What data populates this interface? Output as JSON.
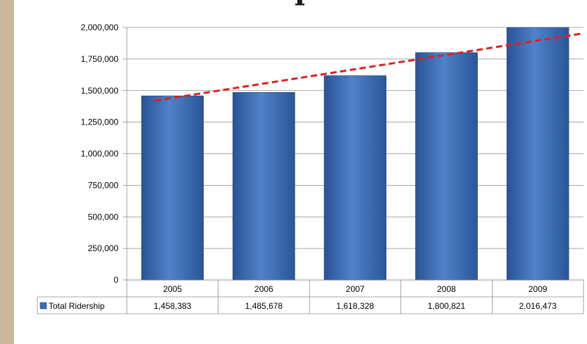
{
  "chart_data": {
    "type": "bar",
    "title_fragment": "p",
    "categories": [
      "2005",
      "2006",
      "2007",
      "2008",
      "2009"
    ],
    "series": [
      {
        "name": "Total Ridership",
        "values": [
          1458383,
          1485678,
          1618328,
          1800821,
          2016473
        ],
        "value_labels": [
          "1,458,383",
          "1,485,678",
          "1,618,328",
          "1,800,821",
          "2,016,473"
        ],
        "color": "#3d6db5"
      }
    ],
    "trendline": {
      "style": "dashed",
      "color": "#e02020",
      "start": 1420000,
      "end": 1950000
    },
    "ylim": [
      0,
      2000000
    ],
    "yticks": [
      0,
      250000,
      500000,
      750000,
      1000000,
      1250000,
      1500000,
      1750000,
      2000000
    ],
    "ytick_labels": [
      "0",
      "250,000",
      "500,000",
      "750,000",
      "1,000,000",
      "1,250,000",
      "1,500,000",
      "1,750,000",
      "2,000,000"
    ],
    "grid": true,
    "data_table": true,
    "legend": "data-table"
  }
}
